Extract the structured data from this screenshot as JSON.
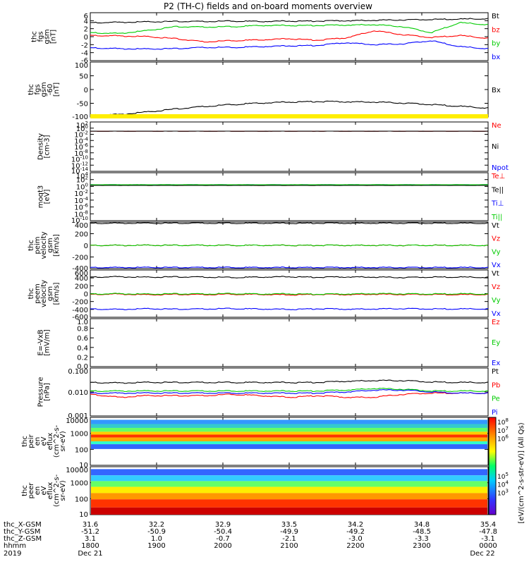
{
  "title": "P2 (TH-C) fields and on-board moments overview",
  "colors": {
    "black": "#000000",
    "red": "#ff0000",
    "green": "#00cc00",
    "blue": "#0000ff",
    "yellow": "#ffee00"
  },
  "chart_data": [
    {
      "type": "line",
      "ylabel": [
        "thc",
        "fgs",
        "gsm",
        "[nT]"
      ],
      "yticks": [
        "6",
        "4",
        "2",
        "0",
        "-2",
        "-4",
        "-6"
      ],
      "ylim": [
        -6,
        6
      ],
      "series": [
        {
          "name": "Bt",
          "color": "black",
          "values": [
            3.5,
            3.6,
            3.7,
            3.8,
            3.8,
            3.9,
            3.8,
            3.9,
            3.9,
            4.0,
            4.1,
            4.2,
            4.3,
            4.4,
            4.5
          ]
        },
        {
          "name": "bz",
          "color": "red",
          "values": [
            0.3,
            0.2,
            0.0,
            -0.5,
            -1.3,
            -1.0,
            -0.8,
            -0.5,
            -0.9,
            -0.3,
            1.5,
            0.5,
            -0.2,
            0.3,
            -0.4
          ]
        },
        {
          "name": "by",
          "color": "green",
          "values": [
            1.0,
            0.8,
            1.5,
            2.5,
            2.4,
            2.5,
            2.8,
            2.8,
            2.8,
            2.9,
            3.0,
            2.5,
            1.0,
            3.5,
            3.0
          ]
        },
        {
          "name": "bx",
          "color": "blue",
          "values": [
            -2.8,
            -3.0,
            -3.1,
            -3.0,
            -2.7,
            -2.7,
            -2.5,
            -2.3,
            -2.2,
            -1.5,
            -2.0,
            -1.8,
            -1.0,
            -2.5,
            -3.0
          ]
        }
      ]
    },
    {
      "type": "line",
      "ylabel": [
        "thc",
        "fgs",
        "gsm",
        "-60",
        "[nT]"
      ],
      "yticks": [
        "100",
        "50",
        "0",
        "-50",
        "-100"
      ],
      "ylim": [
        -120,
        100
      ],
      "series": [
        {
          "name": "Bx",
          "color": "black",
          "values": [
            -112,
            -110,
            -100,
            -88,
            -78,
            -70,
            -64,
            -60,
            -58,
            -59,
            -60,
            -64,
            -70,
            -77,
            -84
          ]
        }
      ]
    },
    {
      "type": "line",
      "ylabel": [
        "Density",
        "[cm-3]"
      ],
      "yticks": [
        "10^2",
        "10^0",
        "10^-2",
        "10^-4",
        "10^-6",
        "10^-8",
        "10^-10",
        "10^-12",
        "10^-14"
      ],
      "ylim": [
        -14,
        2
      ],
      "log": true,
      "series": [
        {
          "name": "Ne",
          "color": "red",
          "values": [
            0.1,
            0.1,
            0.1,
            0.1,
            0.1,
            0.1,
            0.1,
            0.1,
            0.1,
            0.1,
            0.1,
            0.1,
            0.1,
            0.1,
            0.1
          ]
        },
        {
          "name": "Ni",
          "color": "black",
          "values": [
            0.1,
            0.1,
            0.1,
            0.1,
            0.1,
            0.1,
            0.1,
            0.1,
            0.1,
            0.1,
            0.1,
            0.1,
            0.1,
            0.1,
            0.1
          ]
        },
        {
          "name": "Npot",
          "color": "blue",
          "values": []
        }
      ]
    },
    {
      "type": "line",
      "ylabel": [
        "moqt3",
        "[eV]"
      ],
      "yticks": [
        "10^4",
        "10^2",
        "10^0",
        "10^-2",
        "10^-4",
        "10^-6",
        "10^-8",
        "10^-10"
      ],
      "ylim": [
        -10,
        4
      ],
      "log": true,
      "series": [
        {
          "name": "Te⊥",
          "color": "red",
          "values": [
            2.0,
            2.0,
            2.0,
            2.0,
            2.0,
            2.0,
            2.0,
            2.0,
            2.0,
            2.0,
            2.0,
            2.0,
            2.0,
            2.0,
            2.0
          ]
        },
        {
          "name": "Te||",
          "color": "black",
          "values": [
            2.0,
            2.0,
            2.0,
            2.0,
            2.0,
            2.0,
            2.0,
            2.0,
            2.0,
            2.0,
            2.0,
            2.0,
            2.0,
            2.0,
            2.0
          ]
        },
        {
          "name": "Ti⊥",
          "color": "blue",
          "values": [
            3.2,
            3.2,
            3.2,
            3.2,
            3.2,
            3.2,
            3.2,
            3.2,
            3.2,
            3.2,
            3.2,
            3.2,
            3.2,
            3.2,
            3.2
          ]
        },
        {
          "name": "Ti||",
          "color": "green",
          "values": [
            3.2,
            3.2,
            3.2,
            3.2,
            3.2,
            3.2,
            3.2,
            3.2,
            3.2,
            3.2,
            3.2,
            3.2,
            3.2,
            3.2,
            3.2
          ]
        }
      ]
    },
    {
      "type": "line",
      "ylabel": [
        "thc",
        "peim",
        "velocity",
        "gsm",
        "[km/s]"
      ],
      "yticks": [
        "400",
        "200",
        "0",
        "-200",
        "-400"
      ],
      "ylim": [
        -420,
        420
      ],
      "series": [
        {
          "name": "Vt",
          "color": "black",
          "values": [
            400,
            400,
            400,
            400,
            400,
            400,
            400,
            400,
            400,
            400,
            400,
            400,
            400,
            400,
            400
          ]
        },
        {
          "name": "Vz",
          "color": "red",
          "values": [
            0,
            0,
            0,
            0,
            0,
            0,
            0,
            0,
            0,
            0,
            0,
            0,
            0,
            0,
            0
          ]
        },
        {
          "name": "Vy",
          "color": "green",
          "values": [
            0,
            0,
            0,
            0,
            0,
            0,
            0,
            0,
            0,
            0,
            0,
            0,
            0,
            0,
            0
          ]
        },
        {
          "name": "Vx",
          "color": "blue",
          "values": [
            -400,
            -400,
            -400,
            -400,
            -400,
            -400,
            -400,
            -400,
            -400,
            -400,
            -400,
            -400,
            -400,
            -400,
            -400
          ]
        }
      ]
    },
    {
      "type": "line",
      "ylabel": [
        "thc",
        "peem",
        "velocity",
        "gsm",
        "[km/s]"
      ],
      "yticks": [
        "600",
        "400",
        "200",
        "0",
        "-200",
        "-400",
        "-600"
      ],
      "ylim": [
        -600,
        600
      ],
      "series": [
        {
          "name": "Vt",
          "color": "black",
          "values": [
            420,
            430,
            415,
            425,
            420,
            410,
            420,
            430,
            415,
            425,
            420,
            410,
            420,
            420,
            415
          ]
        },
        {
          "name": "Vz",
          "color": "red",
          "values": [
            -20,
            -10,
            -30,
            -20,
            -25,
            -15,
            -20,
            -30,
            -20,
            -25,
            -15,
            -20,
            -20,
            -25,
            -20
          ]
        },
        {
          "name": "Vy",
          "color": "green",
          "values": [
            -10,
            0,
            -15,
            -5,
            -10,
            0,
            -10,
            -5,
            -15,
            -10,
            0,
            -5,
            -10,
            -5,
            -10
          ]
        },
        {
          "name": "Vx",
          "color": "blue",
          "values": [
            -390,
            -400,
            -385,
            -395,
            -390,
            -380,
            -390,
            -400,
            -385,
            -395,
            -390,
            -380,
            -390,
            -390,
            -385
          ]
        }
      ]
    },
    {
      "type": "line",
      "ylabel": [
        "E=-VxB",
        "[mV/m]"
      ],
      "yticks": [
        "1.0",
        "0.8",
        "0.6",
        "0.4",
        "0.2",
        "0.0"
      ],
      "ylim": [
        0,
        1
      ],
      "series": [
        {
          "name": "Ez",
          "color": "red",
          "values": []
        },
        {
          "name": "Ey",
          "color": "green",
          "values": []
        },
        {
          "name": "Ex",
          "color": "blue",
          "values": []
        }
      ]
    },
    {
      "type": "line",
      "ylabel": [
        "Pressure",
        "[nPa]"
      ],
      "yticks": [
        "0.100",
        "0.010",
        "0.001"
      ],
      "ylim": [
        -3,
        -1
      ],
      "log": true,
      "series": [
        {
          "name": "Pt",
          "color": "black",
          "values": [
            0.025,
            0.024,
            0.025,
            0.025,
            0.025,
            0.025,
            0.025,
            0.025,
            0.025,
            0.028,
            0.03,
            0.03,
            0.026,
            0.025,
            0.025
          ]
        },
        {
          "name": "Pb",
          "color": "red",
          "values": [
            0.008,
            0.006,
            0.007,
            0.007,
            0.007,
            0.008,
            0.007,
            0.006,
            0.007,
            0.006,
            0.006,
            0.008,
            0.009,
            0.009,
            0.009
          ]
        },
        {
          "name": "Pe",
          "color": "green",
          "values": [
            0.011,
            0.011,
            0.011,
            0.011,
            0.011,
            0.011,
            0.011,
            0.011,
            0.011,
            0.012,
            0.014,
            0.013,
            0.011,
            0.011,
            0.011
          ]
        },
        {
          "name": "Pi",
          "color": "blue",
          "values": [
            0.009,
            0.009,
            0.009,
            0.009,
            0.009,
            0.009,
            0.009,
            0.009,
            0.009,
            0.01,
            0.012,
            0.012,
            0.01,
            0.009,
            0.009
          ]
        }
      ]
    },
    {
      "type": "heatmap",
      "ylabel": [
        "thc",
        "peir",
        "en",
        "eV",
        "eflux",
        "(cm^2-s-",
        "sr-eV)"
      ],
      "yticks": [
        "10000",
        "1000",
        "100",
        "10"
      ]
    },
    {
      "type": "heatmap",
      "ylabel": [
        "thc",
        "peer",
        "en",
        "eV",
        "eflux",
        "(cm^2-s-",
        "sr-eV)"
      ],
      "yticks": [
        "10000",
        "1000",
        "100",
        "10"
      ]
    }
  ],
  "colorbar": {
    "ticks": [
      "10^8",
      "10^7",
      "10^6",
      "10^5",
      "10^4",
      "10^3"
    ],
    "label": "[eV/(cm^2-s-str-eV)] (All Qs)"
  },
  "axis_rows": [
    {
      "label": "thc_X-GSM",
      "values": [
        "31.6",
        "32.2",
        "32.9",
        "33.5",
        "34.2",
        "34.8",
        "35.4"
      ]
    },
    {
      "label": "thc_Y-GSM",
      "values": [
        "-51.2",
        "-50.9",
        "-50.4",
        "-49.9",
        "-49.2",
        "-48.5",
        "-47.8"
      ]
    },
    {
      "label": "thc_Z-GSM",
      "values": [
        "3.1",
        "1.0",
        "-0.7",
        "-2.1",
        "-3.0",
        "-3.3",
        "-3.1"
      ]
    },
    {
      "label": "hhmm",
      "values": [
        "1800",
        "1900",
        "2000",
        "2100",
        "2200",
        "2300",
        "0000"
      ]
    }
  ],
  "date_row": {
    "year": "2019",
    "start": "Dec 21",
    "end": "Dec 22"
  }
}
